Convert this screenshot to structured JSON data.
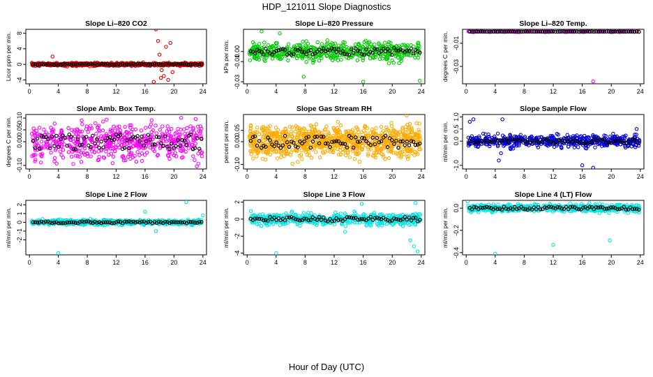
{
  "page": {
    "title": "HDP_121011  Slope Diagnostics",
    "xlabel": "Hour of Day (UTC)"
  },
  "chart_data": [
    {
      "type": "scatter",
      "title": "Slope Li–820 CO2",
      "ylabel": "Licor ppm per min.",
      "xlim": [
        -0.5,
        24.5
      ],
      "ylim": [
        -5,
        9
      ],
      "yticks": [
        "-4",
        "0",
        "4",
        "8"
      ],
      "ytick_values": [
        -4,
        0,
        4,
        8
      ],
      "xticks": [
        "0",
        "4",
        "8",
        "12",
        "16",
        "20",
        "24"
      ],
      "color": "#e00000",
      "band": 0.35,
      "n": 600,
      "outliers": [
        [
          3.2,
          2.0
        ],
        [
          17.5,
          9.0
        ],
        [
          17.8,
          6.0
        ],
        [
          18.0,
          2.5
        ],
        [
          18.3,
          -1.5
        ],
        [
          18.6,
          -3.0
        ],
        [
          18.9,
          4.5
        ],
        [
          19.2,
          -4.0
        ],
        [
          19.5,
          5.5
        ],
        [
          19.8,
          -2.0
        ],
        [
          17.2,
          -4.5
        ],
        [
          18.2,
          -3.5
        ]
      ]
    },
    {
      "type": "scatter",
      "title": "Slope Li–820 Pressure",
      "ylabel": "kPa per min.",
      "xlim": [
        -0.5,
        24.5
      ],
      "ylim": [
        -0.032,
        0.022
      ],
      "yticks": [
        "-0.03",
        "-0.01",
        "0.00"
      ],
      "ytick_values": [
        -0.03,
        -0.01,
        0.0
      ],
      "xticks": [
        "0",
        "4",
        "8",
        "12",
        "16",
        "20",
        "24"
      ],
      "color": "#00cc00",
      "band": 0.008,
      "n": 500,
      "outliers": [
        [
          2.0,
          0.02
        ],
        [
          7.8,
          -0.025
        ],
        [
          16.0,
          -0.03
        ],
        [
          23.8,
          -0.029
        ],
        [
          4.5,
          0.018
        ]
      ]
    },
    {
      "type": "scatter",
      "title": "Slope Li–820 Temp.",
      "ylabel": "degrees C per min.",
      "xlim": [
        -0.5,
        24.5
      ],
      "ylim": [
        -0.045,
        0.002
      ],
      "yticks": [
        "-0.01",
        "-0.03"
      ],
      "ytick_values": [
        -0.01,
        -0.03
      ],
      "xticks": [
        "0",
        "4",
        "8",
        "12",
        "16",
        "20",
        "24"
      ],
      "color": "#ff00ff",
      "band": 0.0003,
      "n": 120,
      "outliers": [
        [
          17.5,
          -0.043
        ]
      ]
    },
    {
      "type": "scatter",
      "title": "Slope Amb. Box Temp.",
      "ylabel": "degrees C per min.",
      "xlim": [
        -0.5,
        24.5
      ],
      "ylim": [
        -0.115,
        0.115
      ],
      "yticks": [
        "-0.10",
        "0.00",
        "0.05",
        "0.10"
      ],
      "ytick_values": [
        -0.1,
        0.0,
        0.05,
        0.1
      ],
      "xticks": [
        "0",
        "4",
        "8",
        "12",
        "16",
        "20",
        "24"
      ],
      "color": "#ff00ff",
      "band": 0.07,
      "n": 550,
      "outliers": []
    },
    {
      "type": "scatter",
      "title": "Slope Gas Stream RH",
      "ylabel": "percent per min.",
      "xlim": [
        -0.5,
        24.5
      ],
      "ylim": [
        -0.12,
        0.12
      ],
      "yticks": [
        "-0.10",
        "0.00",
        "0.05"
      ],
      "ytick_values": [
        -0.1,
        0.0,
        0.05
      ],
      "xticks": [
        "0",
        "4",
        "8",
        "12",
        "16",
        "20",
        "24"
      ],
      "color": "#ffaa00",
      "band": 0.06,
      "n": 900,
      "outliers": [
        [
          22.0,
          0.115
        ]
      ]
    },
    {
      "type": "scatter",
      "title": "Slope Sample Flow",
      "ylabel": "ml/min per min.",
      "xlim": [
        -0.5,
        24.5
      ],
      "ylim": [
        -1.15,
        1.1
      ],
      "yticks": [
        "-1.0",
        "0.0",
        "0.5",
        "1.0"
      ],
      "ytick_values": [
        -1.0,
        0.0,
        0.5,
        1.0
      ],
      "xticks": [
        "0",
        "4",
        "8",
        "12",
        "16",
        "20",
        "24"
      ],
      "color": "#0000dd",
      "band": 0.22,
      "n": 500,
      "outliers": [
        [
          0.5,
          0.8
        ],
        [
          1.0,
          0.9
        ],
        [
          4.5,
          -0.8
        ],
        [
          5.0,
          0.9
        ],
        [
          16.0,
          -1.0
        ],
        [
          17.5,
          -1.1
        ],
        [
          23.5,
          0.5
        ],
        [
          4.8,
          -0.5
        ]
      ]
    },
    {
      "type": "scatter",
      "title": "Slope Line 2 Flow",
      "ylabel": "ml/min per min.",
      "xlim": [
        -0.5,
        24.5
      ],
      "ylim": [
        -3.7,
        2.5
      ],
      "yticks": [
        "-2",
        "-1",
        "0",
        "1",
        "2"
      ],
      "ytick_values": [
        -2,
        -1,
        0,
        1,
        2
      ],
      "xticks": [
        "0",
        "4",
        "8",
        "12",
        "16",
        "20",
        "24"
      ],
      "color": "#00e5e5",
      "band": 0.25,
      "n": 500,
      "outliers": [
        [
          4.0,
          -3.5
        ],
        [
          16.0,
          1.2
        ],
        [
          17.5,
          -1.0
        ],
        [
          21.7,
          2.3
        ],
        [
          24.0,
          0.8
        ]
      ]
    },
    {
      "type": "scatter",
      "title": "Slope Line 3 Flow",
      "ylabel": "ml/min per min.",
      "xlim": [
        -0.5,
        24.5
      ],
      "ylim": [
        -4.2,
        2.2
      ],
      "yticks": [
        "-4",
        "-2",
        "0",
        "2"
      ],
      "ytick_values": [
        -4,
        -2,
        0,
        2
      ],
      "xticks": [
        "0",
        "4",
        "8",
        "12",
        "16",
        "20",
        "24"
      ],
      "color": "#00e5e5",
      "band": 0.6,
      "n": 500,
      "outliers": [
        [
          4.0,
          -4.0
        ],
        [
          15.8,
          1.8
        ],
        [
          22.5,
          -2.5
        ],
        [
          23.0,
          -3.2
        ],
        [
          23.5,
          -3.8
        ],
        [
          23.2,
          1.9
        ],
        [
          13.5,
          -1.5
        ]
      ]
    },
    {
      "type": "scatter",
      "title": "Slope Line 4 (LT) Flow",
      "ylabel": "ml/min per min.",
      "xlim": [
        -0.5,
        24.5
      ],
      "ylim": [
        -0.42,
        0.07
      ],
      "yticks": [
        "-0.4",
        "-0.2",
        "0.0"
      ],
      "ytick_values": [
        -0.4,
        -0.2,
        0.0
      ],
      "xticks": [
        "0",
        "4",
        "8",
        "12",
        "16",
        "20",
        "24"
      ],
      "color": "#00e5e5",
      "band": 0.03,
      "n": 500,
      "outliers": [
        [
          4.0,
          -0.41
        ],
        [
          12.0,
          -0.33
        ],
        [
          19.8,
          -0.29
        ],
        [
          0.2,
          0.06
        ]
      ]
    }
  ]
}
